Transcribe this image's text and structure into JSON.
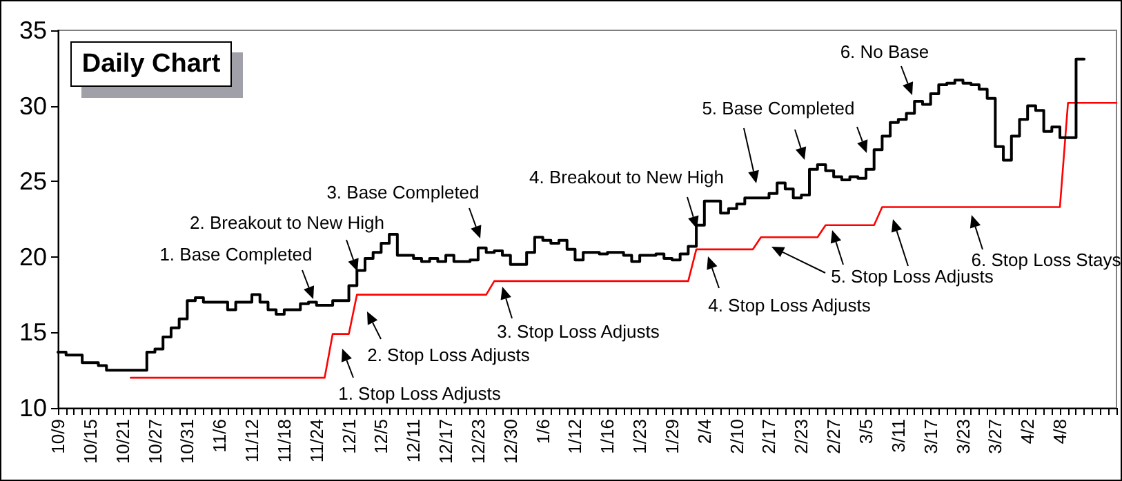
{
  "chart_data": {
    "type": "line",
    "title": "Daily Chart",
    "categories": [
      "10/9",
      null,
      null,
      null,
      "10/15",
      null,
      null,
      null,
      "10/21",
      null,
      null,
      null,
      "10/27",
      null,
      null,
      null,
      "10/31",
      null,
      null,
      null,
      "11/6",
      null,
      null,
      null,
      "11/12",
      null,
      null,
      null,
      "11/18",
      null,
      null,
      null,
      "11/24",
      null,
      null,
      null,
      "12/1",
      null,
      null,
      null,
      "12/5",
      null,
      null,
      null,
      "12/11",
      null,
      null,
      null,
      "12/17",
      null,
      null,
      null,
      "12/23",
      null,
      null,
      null,
      "12/30",
      null,
      null,
      null,
      "1/6",
      null,
      null,
      null,
      "1/12",
      null,
      null,
      null,
      "1/16",
      null,
      null,
      null,
      "1/23",
      null,
      null,
      null,
      "1/29",
      null,
      null,
      null,
      "2/4",
      null,
      null,
      null,
      "2/10",
      null,
      null,
      null,
      "2/17",
      null,
      null,
      null,
      "2/23",
      null,
      null,
      null,
      "2/27",
      null,
      null,
      null,
      "3/5",
      null,
      null,
      null,
      "3/11",
      null,
      null,
      null,
      "3/17",
      null,
      null,
      null,
      "3/23",
      null,
      null,
      null,
      "3/27",
      null,
      null,
      null,
      "4/2",
      null,
      null,
      null,
      "4/8",
      null,
      null,
      null,
      null,
      null,
      null,
      null
    ],
    "series": [
      {
        "type": "step",
        "color": "#000000",
        "values": [
          13.7,
          13.7,
          13.5,
          13.5,
          13.0,
          13.0,
          12.8,
          12.5,
          12.5,
          12.5,
          12.5,
          12.5,
          13.7,
          13.9,
          14.7,
          15.3,
          15.9,
          17.1,
          17.3,
          17.0,
          17.0,
          17.0,
          16.5,
          17.0,
          17.0,
          17.5,
          17.0,
          16.5,
          16.2,
          16.5,
          16.5,
          16.9,
          17.0,
          16.8,
          16.8,
          17.1,
          17.1,
          18.1,
          19.1,
          19.9,
          20.3,
          20.9,
          21.5,
          20.1,
          20.1,
          19.9,
          19.7,
          19.9,
          19.7,
          20.1,
          19.7,
          19.7,
          19.8,
          20.6,
          20.3,
          20.4,
          20.1,
          19.5,
          19.5,
          20.3,
          21.3,
          21.1,
          20.9,
          21.1,
          20.5,
          19.8,
          20.3,
          20.3,
          20.2,
          20.3,
          20.3,
          20.1,
          19.7,
          20.1,
          20.1,
          20.2,
          19.9,
          19.8,
          20.2,
          20.7,
          22.1,
          23.7,
          23.7,
          22.9,
          23.2,
          23.5,
          23.9,
          23.9,
          23.9,
          24.2,
          24.9,
          24.5,
          23.9,
          24.1,
          25.8,
          26.1,
          25.7,
          25.3,
          25.1,
          25.3,
          25.2,
          25.8,
          27.1,
          28.0,
          28.9,
          29.1,
          29.5,
          30.3,
          30.1,
          30.8,
          31.4,
          31.5,
          31.7,
          31.5,
          31.4,
          31.1,
          30.5,
          27.3,
          26.4,
          28.0,
          29.1,
          30.0,
          29.7,
          28.3,
          28.6,
          27.9,
          27.9,
          33.1,
          null,
          null,
          null,
          null
        ]
      },
      {
        "color": "#ff0000",
        "values": [
          null,
          null,
          null,
          null,
          null,
          null,
          null,
          null,
          null,
          12.0,
          12.0,
          12.0,
          12.0,
          12.0,
          12.0,
          12.0,
          12.0,
          12.0,
          12.0,
          12.0,
          12.0,
          12.0,
          12.0,
          12.0,
          12.0,
          12.0,
          12.0,
          12.0,
          12.0,
          12.0,
          12.0,
          12.0,
          12.0,
          12.0,
          14.9,
          14.9,
          14.9,
          17.5,
          17.5,
          17.5,
          17.5,
          17.5,
          17.5,
          17.5,
          17.5,
          17.5,
          17.5,
          17.5,
          17.5,
          17.5,
          17.5,
          17.5,
          17.5,
          17.5,
          18.4,
          18.4,
          18.4,
          18.4,
          18.4,
          18.4,
          18.4,
          18.4,
          18.4,
          18.4,
          18.4,
          18.4,
          18.4,
          18.4,
          18.4,
          18.4,
          18.4,
          18.4,
          18.4,
          18.4,
          18.4,
          18.4,
          18.4,
          18.4,
          18.4,
          20.5,
          20.5,
          20.5,
          20.5,
          20.5,
          20.5,
          20.5,
          20.5,
          21.3,
          21.3,
          21.3,
          21.3,
          21.3,
          21.3,
          21.3,
          21.3,
          22.1,
          22.1,
          22.1,
          22.1,
          22.1,
          22.1,
          22.1,
          23.3,
          23.3,
          23.3,
          23.3,
          23.3,
          23.3,
          23.3,
          23.3,
          23.3,
          23.3,
          23.3,
          23.3,
          23.3,
          23.3,
          23.3,
          23.3,
          23.3,
          23.3,
          23.3,
          23.3,
          23.3,
          23.3,
          23.3,
          30.2,
          30.2,
          30.2,
          30.2,
          30.2,
          30.2,
          30.2
        ]
      }
    ],
    "ylim": [
      10,
      35
    ],
    "yticks": [
      10,
      15,
      20,
      25,
      30,
      35
    ],
    "grid": false,
    "marker": "none",
    "line_style": "solid",
    "annotations": [
      "1. Base Completed",
      "2. Breakout to New High",
      "3. Base Completed",
      "4. Breakout to New High",
      "5. Base Completed",
      "6. No Base",
      "1. Stop Loss Adjusts",
      "2. Stop Loss Adjusts",
      "3. Stop Loss Adjusts",
      "4. Stop Loss Adjusts",
      "5. Stop Loss Adjusts",
      "6. Stop Loss Stays"
    ]
  }
}
